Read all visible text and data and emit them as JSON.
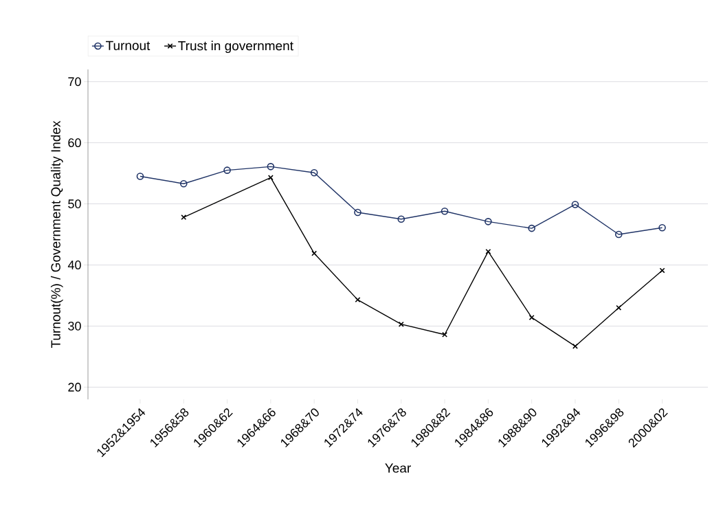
{
  "chart_data": {
    "type": "line",
    "xlabel": "Year",
    "ylabel": "Turnout(%) / Government Quality Index",
    "categories": [
      "1952&1954",
      "1956&58",
      "1960&62",
      "1964&66",
      "1968&70",
      "1972&74",
      "1976&78",
      "1980&82",
      "1984&86",
      "1988&90",
      "1992&94",
      "1996&98",
      "2000&02"
    ],
    "series": [
      {
        "name": "Turnout",
        "color": "#1f3366",
        "marker": "circle",
        "values": [
          54.5,
          53.3,
          55.5,
          56.1,
          55.1,
          48.6,
          47.5,
          48.8,
          47.1,
          46.0,
          49.9,
          45.0,
          46.1
        ]
      },
      {
        "name": "Trust in government",
        "color": "#000000",
        "marker": "cross",
        "values": [
          null,
          47.8,
          null,
          54.3,
          41.9,
          34.3,
          30.3,
          28.6,
          42.2,
          31.4,
          26.7,
          33.0,
          39.1
        ]
      }
    ],
    "ylim": [
      18,
      72
    ],
    "yticks": [
      20,
      30,
      40,
      50,
      60,
      70
    ],
    "grid": "y",
    "legend": "top left",
    "line_style": "solid"
  }
}
